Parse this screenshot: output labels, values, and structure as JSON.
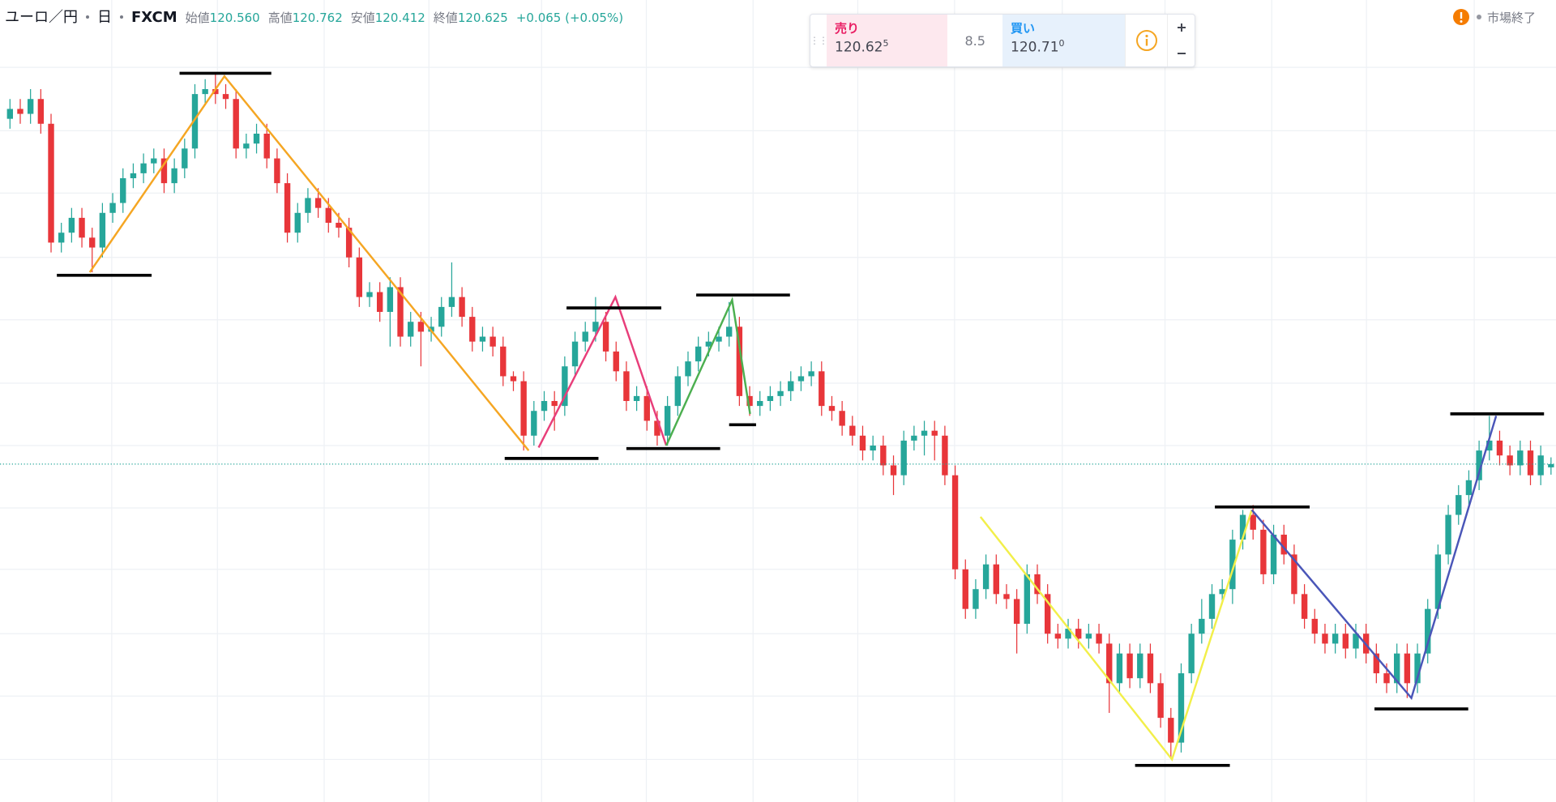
{
  "header": {
    "symbol": "ユーロ／円",
    "interval": "日",
    "source": "FXCM",
    "ohlc": [
      {
        "label": "始値",
        "value": "120.560"
      },
      {
        "label": "高値",
        "value": "120.762"
      },
      {
        "label": "安値",
        "value": "120.412"
      },
      {
        "label": "終値",
        "value": "120.625"
      }
    ],
    "change": "+0.065 (+0.05%)",
    "market_status": "市場終了"
  },
  "trade_panel": {
    "sell": {
      "label": "売り",
      "price": "120.62",
      "pip": "5"
    },
    "spread": "8.5",
    "buy": {
      "label": "買い",
      "price": "120.71",
      "pip": "0"
    }
  },
  "chart_data": {
    "type": "candlestick",
    "up_color": "#26a69a",
    "down_color": "#e8363a",
    "ylim": [
      113.8,
      130
    ],
    "open": [
      127.6,
      127.8,
      127.7,
      128.0,
      127.5,
      125.1,
      125.3,
      125.6,
      125.2,
      125.0,
      125.7,
      125.9,
      126.4,
      126.5,
      126.7,
      126.8,
      126.3,
      126.6,
      127.0,
      128.1,
      128.2,
      128.1,
      128.0,
      127.0,
      127.1,
      127.3,
      126.8,
      126.3,
      125.3,
      125.7,
      126.0,
      125.8,
      125.5,
      125.4,
      124.8,
      124.0,
      124.1,
      123.7,
      124.2,
      123.2,
      123.5,
      123.3,
      123.4,
      123.8,
      124.0,
      123.6,
      123.1,
      123.2,
      123.0,
      122.4,
      122.3,
      121.2,
      121.7,
      121.9,
      121.8,
      122.6,
      123.1,
      123.3,
      123.5,
      122.9,
      122.5,
      121.9,
      122.0,
      121.5,
      121.2,
      121.8,
      122.4,
      122.7,
      123.0,
      123.1,
      123.2,
      123.4,
      122.0,
      121.8,
      121.9,
      122.0,
      122.1,
      122.3,
      122.4,
      122.5,
      121.8,
      121.7,
      121.4,
      121.2,
      120.9,
      121.0,
      120.6,
      120.4,
      121.1,
      121.2,
      121.3,
      121.2,
      120.4,
      118.5,
      117.7,
      118.1,
      118.6,
      118.0,
      117.9,
      117.4,
      118.4,
      118.0,
      117.2,
      117.1,
      117.3,
      117.1,
      117.2,
      117.0,
      116.2,
      116.8,
      116.3,
      116.8,
      116.2,
      115.5,
      115.0,
      116.4,
      117.2,
      117.5,
      118.0,
      118.1,
      119.1,
      119.6,
      119.3,
      118.4,
      119.2,
      118.8,
      118.0,
      117.5,
      117.2,
      117.0,
      117.2,
      116.9,
      117.2,
      116.8,
      116.4,
      116.2,
      116.8,
      116.2,
      116.8,
      117.7,
      118.8,
      119.6,
      120.0,
      120.3,
      120.9,
      121.1,
      120.8,
      120.6,
      120.9,
      120.4,
      120.56
    ],
    "high": [
      128.0,
      128.0,
      128.2,
      128.2,
      127.7,
      125.5,
      125.8,
      125.8,
      125.4,
      125.9,
      126.1,
      126.6,
      126.7,
      126.9,
      127.0,
      127.0,
      126.8,
      127.2,
      128.3,
      128.4,
      128.5,
      128.3,
      128.2,
      127.3,
      127.5,
      127.5,
      127.0,
      126.5,
      125.9,
      126.2,
      126.2,
      126.0,
      125.7,
      125.6,
      125.0,
      124.3,
      124.3,
      124.4,
      124.4,
      123.7,
      123.7,
      123.6,
      124.0,
      124.7,
      124.2,
      123.8,
      123.4,
      123.4,
      123.2,
      122.5,
      122.5,
      121.9,
      122.1,
      122.1,
      122.8,
      123.3,
      123.5,
      124.0,
      123.7,
      123.1,
      122.7,
      122.2,
      122.2,
      121.7,
      122.0,
      122.6,
      122.9,
      123.2,
      123.3,
      123.4,
      123.9,
      123.6,
      122.2,
      122.1,
      122.2,
      122.3,
      122.5,
      122.6,
      122.7,
      122.7,
      122.0,
      121.9,
      121.6,
      121.4,
      121.2,
      121.2,
      120.8,
      121.3,
      121.4,
      121.5,
      121.5,
      121.4,
      120.6,
      118.7,
      118.3,
      118.8,
      118.8,
      118.2,
      118.1,
      118.6,
      118.6,
      118.2,
      117.4,
      117.5,
      117.5,
      117.4,
      117.4,
      117.2,
      117.0,
      117.0,
      117.0,
      117.0,
      116.4,
      115.7,
      116.6,
      117.4,
      117.9,
      118.2,
      118.3,
      119.3,
      119.7,
      119.8,
      119.5,
      119.4,
      119.4,
      119.0,
      118.2,
      117.7,
      117.4,
      117.4,
      117.4,
      117.4,
      117.4,
      117.0,
      116.6,
      117.0,
      117.0,
      117.0,
      117.9,
      119.0,
      119.8,
      120.2,
      120.5,
      121.1,
      121.6,
      121.3,
      121.0,
      121.1,
      121.1,
      121.0,
      120.762
    ],
    "low": [
      127.4,
      127.5,
      127.5,
      127.3,
      124.9,
      124.9,
      125.1,
      125.0,
      124.5,
      124.8,
      125.5,
      125.7,
      126.2,
      126.3,
      126.5,
      126.1,
      126.1,
      126.4,
      126.8,
      127.9,
      127.9,
      127.8,
      126.8,
      126.8,
      126.9,
      126.6,
      126.1,
      125.1,
      125.1,
      125.5,
      125.6,
      125.3,
      125.2,
      124.6,
      123.8,
      123.8,
      123.5,
      123.0,
      123.0,
      123.0,
      122.6,
      123.1,
      123.2,
      123.6,
      123.4,
      122.9,
      122.9,
      122.8,
      122.2,
      122.1,
      120.9,
      121.0,
      121.5,
      121.3,
      121.6,
      122.4,
      122.9,
      123.1,
      122.7,
      122.3,
      121.7,
      121.7,
      121.3,
      121.0,
      121.0,
      121.6,
      122.2,
      122.5,
      122.8,
      122.9,
      123.0,
      121.8,
      121.6,
      121.6,
      121.7,
      121.8,
      121.9,
      122.1,
      122.2,
      121.6,
      121.5,
      121.2,
      121.0,
      120.7,
      120.7,
      120.4,
      120.0,
      120.2,
      120.9,
      120.8,
      120.7,
      120.2,
      118.3,
      117.5,
      117.5,
      117.9,
      117.8,
      117.7,
      116.8,
      117.2,
      117.8,
      117.0,
      116.9,
      116.9,
      116.9,
      116.9,
      116.8,
      115.6,
      116.0,
      116.1,
      116.1,
      116.0,
      115.3,
      114.7,
      114.8,
      116.2,
      117.0,
      117.3,
      117.8,
      117.8,
      118.9,
      119.1,
      118.2,
      118.2,
      118.6,
      117.8,
      117.3,
      117.0,
      116.8,
      116.8,
      116.7,
      116.7,
      116.6,
      116.2,
      116.0,
      116.0,
      115.9,
      116.0,
      116.6,
      117.5,
      118.6,
      119.4,
      119.8,
      120.1,
      120.7,
      120.6,
      120.4,
      120.4,
      120.2,
      120.2,
      120.412
    ],
    "close": [
      127.8,
      127.7,
      128.0,
      127.5,
      125.1,
      125.3,
      125.6,
      125.2,
      125.0,
      125.7,
      125.9,
      126.4,
      126.5,
      126.7,
      126.8,
      126.3,
      126.6,
      127.0,
      128.1,
      128.2,
      128.1,
      128.0,
      127.0,
      127.1,
      127.3,
      126.8,
      126.3,
      125.3,
      125.7,
      126.0,
      125.8,
      125.5,
      125.4,
      124.8,
      124.0,
      124.1,
      123.7,
      124.2,
      123.2,
      123.5,
      123.3,
      123.4,
      123.8,
      124.0,
      123.6,
      123.1,
      123.2,
      123.0,
      122.4,
      122.3,
      121.2,
      121.7,
      121.9,
      121.8,
      122.6,
      123.1,
      123.3,
      123.5,
      122.9,
      122.5,
      121.9,
      122.0,
      121.5,
      121.2,
      121.8,
      122.4,
      122.7,
      123.0,
      123.1,
      123.2,
      123.4,
      122.0,
      121.8,
      121.9,
      122.0,
      122.1,
      122.3,
      122.4,
      122.5,
      121.8,
      121.7,
      121.4,
      121.2,
      120.9,
      121.0,
      120.6,
      120.4,
      121.1,
      121.2,
      121.3,
      121.2,
      120.4,
      118.5,
      117.7,
      118.1,
      118.6,
      118.0,
      117.9,
      117.4,
      118.4,
      118.0,
      117.2,
      117.1,
      117.3,
      117.1,
      117.2,
      117.0,
      116.2,
      116.8,
      116.3,
      116.8,
      116.2,
      115.5,
      115.0,
      116.4,
      117.2,
      117.5,
      118.0,
      118.1,
      119.1,
      119.6,
      119.3,
      118.4,
      119.2,
      118.8,
      118.0,
      117.5,
      117.2,
      117.0,
      117.2,
      116.9,
      117.2,
      116.8,
      116.4,
      116.2,
      116.8,
      116.2,
      116.8,
      117.7,
      118.8,
      119.6,
      120.0,
      120.3,
      120.9,
      121.1,
      120.8,
      120.6,
      120.9,
      120.4,
      120.8,
      120.625
    ]
  }
}
